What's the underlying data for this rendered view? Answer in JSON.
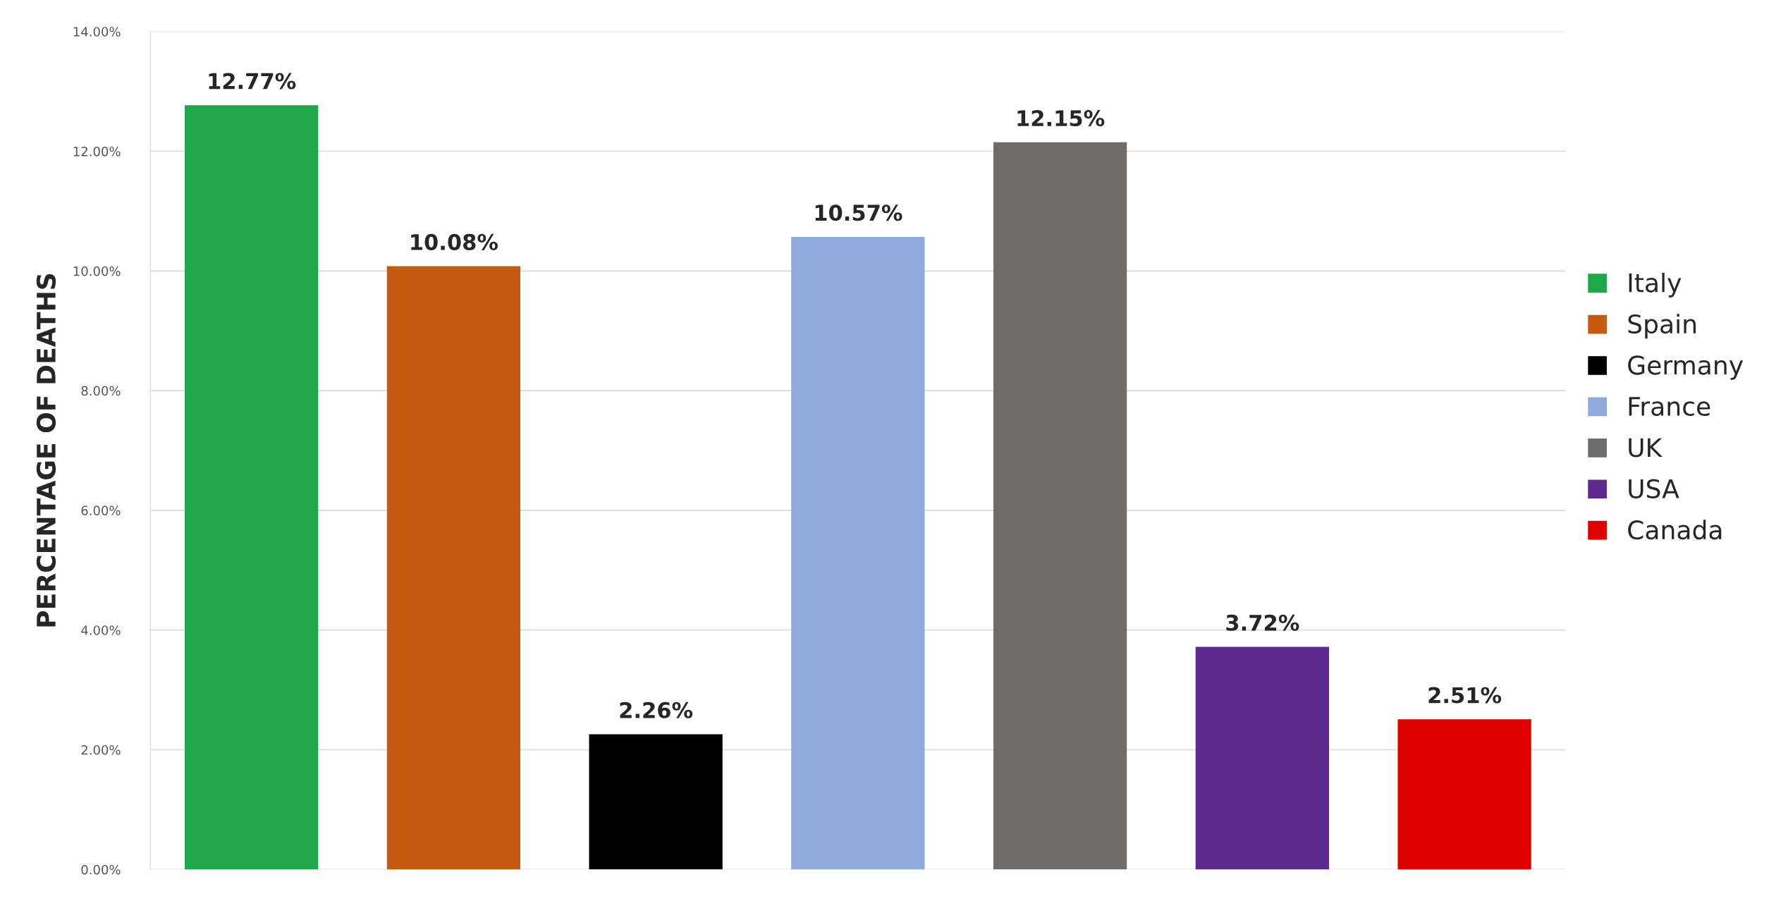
{
  "chart_data": {
    "type": "bar",
    "ylabel": "PERCENTAGE OF DEATHS",
    "categories": [
      null,
      null,
      null,
      null,
      null,
      null,
      null
    ],
    "series": [
      {
        "name": "Italy",
        "color": "#1fa84a",
        "values": [
          12.77,
          null,
          null,
          null,
          null,
          null,
          null
        ],
        "value_labels": [
          "12.77%",
          null,
          null,
          null,
          null,
          null,
          null
        ]
      },
      {
        "name": "Spain",
        "color": "#c55a11",
        "values": [
          null,
          10.08,
          null,
          null,
          null,
          null,
          null
        ],
        "value_labels": [
          null,
          "10.08%",
          null,
          null,
          null,
          null,
          null
        ]
      },
      {
        "name": "Germany",
        "color": "#000000",
        "values": [
          null,
          null,
          2.26,
          null,
          null,
          null,
          null
        ],
        "value_labels": [
          null,
          null,
          "2.26%",
          null,
          null,
          null,
          null
        ]
      },
      {
        "name": "France",
        "color": "#8faadc",
        "values": [
          null,
          null,
          null,
          10.57,
          null,
          null,
          null
        ],
        "value_labels": [
          null,
          null,
          null,
          "10.57%",
          null,
          null,
          null
        ]
      },
      {
        "name": "UK",
        "color": "#6f6c6c",
        "values": [
          null,
          null,
          null,
          null,
          12.15,
          null,
          null
        ],
        "value_labels": [
          null,
          null,
          null,
          null,
          "12.15%",
          null,
          null
        ]
      },
      {
        "name": "USA",
        "color": "#5b2a8c",
        "values": [
          null,
          null,
          null,
          null,
          null,
          3.72,
          null
        ],
        "value_labels": [
          null,
          null,
          null,
          null,
          null,
          "3.72%",
          null
        ]
      },
      {
        "name": "Canada",
        "color": "#e00000",
        "values": [
          null,
          null,
          null,
          null,
          null,
          null,
          2.51
        ],
        "value_labels": [
          null,
          null,
          null,
          null,
          null,
          null,
          "2.51%"
        ]
      }
    ],
    "ylim": [
      0,
      14
    ],
    "yticks": [
      {
        "value": 0,
        "label": "0.00%"
      },
      {
        "value": 2,
        "label": "2.00%"
      },
      {
        "value": 4,
        "label": "4.00%"
      },
      {
        "value": 6,
        "label": "6.00%"
      },
      {
        "value": 8,
        "label": "8.00%"
      },
      {
        "value": 10,
        "label": "10.00%"
      },
      {
        "value": 12,
        "label": "12.00%"
      },
      {
        "value": 14,
        "label": "14.00%"
      }
    ],
    "grid": "y",
    "legend": "right"
  }
}
